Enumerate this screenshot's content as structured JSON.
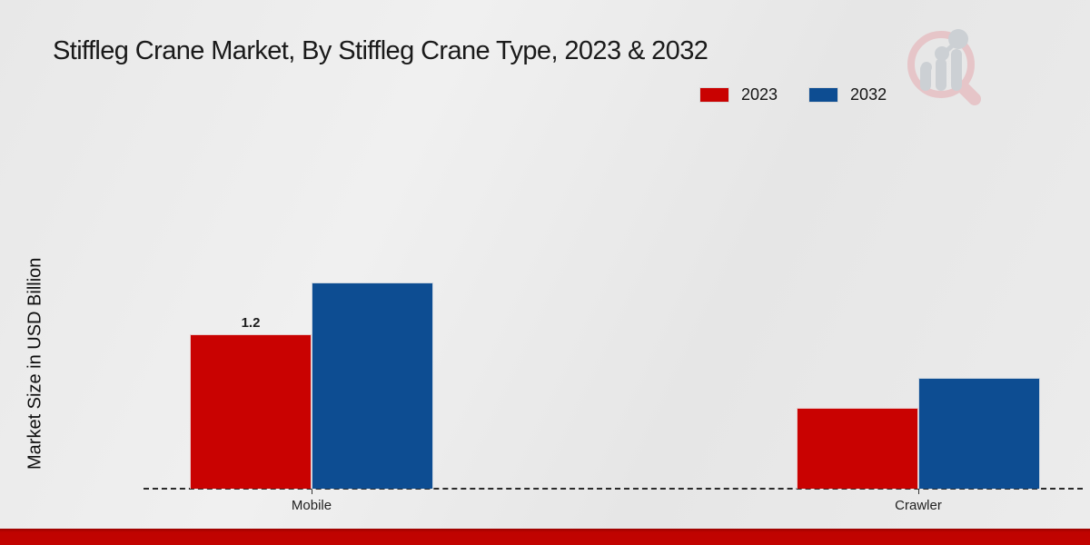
{
  "title": "Stiffleg Crane Market, By Stiffleg Crane Type, 2023 & 2032",
  "ylabel": "Market Size in USD Billion",
  "legend": {
    "items": [
      {
        "label": "2023",
        "color": "#c90201"
      },
      {
        "label": "2032",
        "color": "#0d4d92"
      }
    ]
  },
  "chart_data": {
    "type": "bar",
    "title": "Stiffleg Crane Market, By Stiffleg Crane Type, 2023 & 2032",
    "xlabel": "",
    "ylabel": "Market Size in USD Billion",
    "categories": [
      "Mobile",
      "Crawler"
    ],
    "series": [
      {
        "name": "2023",
        "color": "#c90201",
        "values": [
          1.2,
          0.63
        ],
        "labels": [
          "1.2",
          ""
        ]
      },
      {
        "name": "2032",
        "color": "#0d4d92",
        "values": [
          1.6,
          0.86
        ],
        "labels": [
          "",
          ""
        ]
      }
    ],
    "ylim": [
      0,
      1.8
    ],
    "grid": false,
    "y_axis_ticks_visible": false,
    "baseline_style": "dashed",
    "legend_position": "top-right"
  },
  "footer": {
    "bar_color": "#c20300"
  },
  "logo": {
    "name": "market-research-magnifier-chart-logo"
  }
}
